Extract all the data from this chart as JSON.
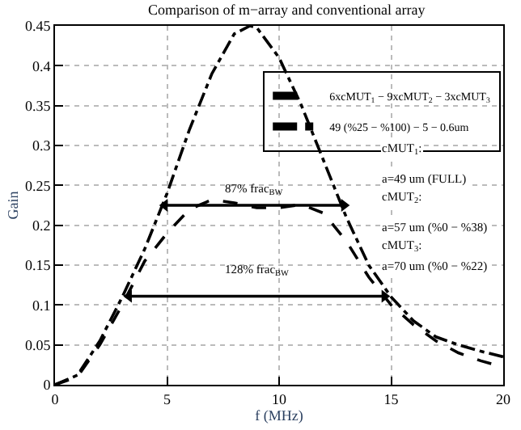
{
  "chart_data": {
    "type": "line",
    "title": "Comparison of m−array and conventional array",
    "xlabel": "f (MHz)",
    "ylabel": "Gain",
    "xlim": [
      0,
      20
    ],
    "ylim": [
      0,
      0.45
    ],
    "xticks": [
      0,
      5,
      10,
      15,
      20
    ],
    "yticks": [
      0,
      0.05,
      0.1,
      0.15,
      0.2,
      0.25,
      0.3,
      0.35,
      0.4,
      0.45
    ],
    "grid": true,
    "legend": "top right",
    "series": [
      {
        "name": "6xcMUT$_{1}$ − 9xcMUT$_{2}$ − 3xcMUT$_{3}$",
        "color": "#000000",
        "line_style": "dashed",
        "x": [
          0,
          1,
          2,
          3,
          4,
          5,
          6,
          7,
          8,
          9,
          10,
          11,
          12,
          13,
          14,
          15,
          16,
          17,
          18,
          19,
          20
        ],
        "values": [
          0,
          0.01,
          0.05,
          0.1,
          0.155,
          0.19,
          0.22,
          0.232,
          0.228,
          0.222,
          0.222,
          0.226,
          0.215,
          0.18,
          0.135,
          0.1,
          0.075,
          0.055,
          0.04,
          0.03,
          0.022
        ]
      },
      {
        "name": "49 (%25 − %100) − 5 − 0.6um",
        "color": "#000000",
        "line_style": "dashdot",
        "x": [
          0,
          1,
          2,
          3,
          4,
          5,
          6,
          7,
          8,
          8.7,
          9,
          10,
          11,
          12,
          13,
          14,
          15,
          16,
          17,
          18,
          19,
          20
        ],
        "values": [
          0,
          0.012,
          0.055,
          0.11,
          0.17,
          0.24,
          0.32,
          0.39,
          0.44,
          0.45,
          0.448,
          0.41,
          0.35,
          0.28,
          0.21,
          0.15,
          0.11,
          0.08,
          0.06,
          0.05,
          0.042,
          0.035
        ]
      },
      {
        "color": "#000000",
        "line_style": "solid",
        "marker": "triangle",
        "x": [
          4.9,
          12.9
        ],
        "values": [
          0.225,
          0.225
        ]
      },
      {
        "color": "#000000",
        "line_style": "solid",
        "marker": "triangle",
        "x": [
          3.3,
          14.7
        ],
        "values": [
          0.111,
          0.111
        ]
      }
    ],
    "annotations": [
      "87% frac$_{BW}$",
      "128% frac$_{BW}$",
      "cMUT$_{1}$:",
      "a=49 um (FULL)",
      "cMUT$_{2}$:",
      "a=57 um (%0 − %38)",
      "cMUT$_{3}$:",
      "a=70 um (%0 − %22)"
    ]
  }
}
